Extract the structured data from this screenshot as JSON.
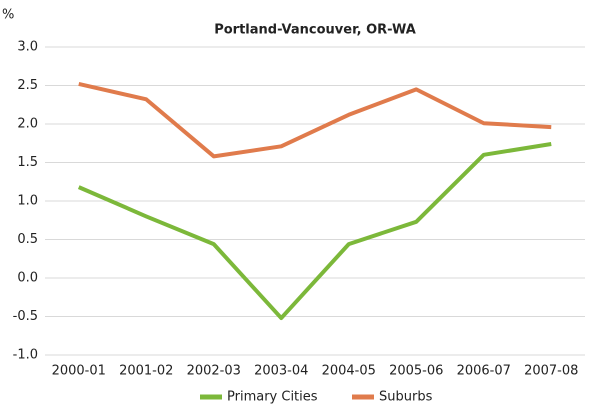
{
  "chart_data": {
    "type": "line",
    "title": "Portland-Vancouver, OR-WA",
    "y_label": "%",
    "categories": [
      "2000-01",
      "2001-02",
      "2002-03",
      "2003-04",
      "2004-05",
      "2005-06",
      "2006-07",
      "2007-08"
    ],
    "series": [
      {
        "name": "Primary Cities",
        "color": "#7cb83a",
        "values": [
          1.18,
          0.8,
          0.44,
          -0.52,
          0.44,
          0.73,
          1.6,
          1.74
        ]
      },
      {
        "name": "Suburbs",
        "color": "#e07b4c",
        "values": [
          2.52,
          2.32,
          1.58,
          1.71,
          2.12,
          2.45,
          2.01,
          1.96
        ]
      }
    ],
    "ylim": [
      -1,
      3
    ],
    "yticks": [
      {
        "value": -1,
        "label": "-1.0"
      },
      -0.5,
      {
        "value": 0,
        "label": "0.0"
      },
      0.5,
      {
        "value": 1,
        "label": "1.0"
      },
      1.5,
      {
        "value": 2,
        "label": "2.0"
      },
      2.5,
      {
        "value": 3,
        "label": "3.0"
      }
    ],
    "grid": true,
    "legend": "bottom"
  }
}
